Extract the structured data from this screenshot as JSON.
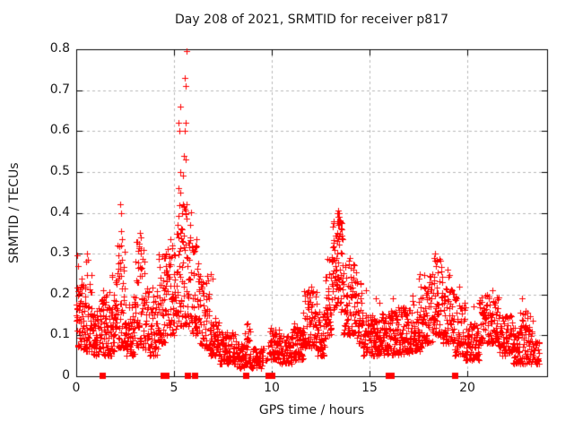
{
  "window": {
    "background": "#ffffff",
    "text_color": "#1a1a1a"
  },
  "chart_data": {
    "type": "scatter",
    "title": "Day 208 of 2021, SRMTID for receiver p817",
    "xlabel": "GPS time / hours",
    "ylabel": "SRMTID / TECUs",
    "xlim": [
      0,
      24.08
    ],
    "ylim": [
      0,
      0.8
    ],
    "xticks": [
      0,
      5,
      10,
      15,
      20
    ],
    "yticks": [
      0,
      0.1,
      0.2,
      0.3,
      0.4,
      0.5,
      0.6,
      0.7,
      0.8
    ],
    "grid": {
      "show": true,
      "style": "dashed",
      "color": "#b8b8b8"
    },
    "axis_color": "#000000",
    "marker": {
      "shape": "plus",
      "color": "#ff0000",
      "size": 7
    },
    "zero_marker": {
      "shape": "square",
      "color": "#ff0000",
      "size": 7
    },
    "legend": null,
    "seed": 42,
    "density_bands": [
      [
        0.0,
        0.3,
        0.07,
        0.24,
        40,
        1.2
      ],
      [
        0.3,
        0.8,
        0.06,
        0.25,
        60,
        1.5
      ],
      [
        0.8,
        1.3,
        0.05,
        0.17,
        55,
        1.4
      ],
      [
        1.3,
        1.8,
        0.05,
        0.22,
        60,
        1.6
      ],
      [
        1.8,
        2.1,
        0.06,
        0.25,
        40,
        1.5
      ],
      [
        2.1,
        2.5,
        0.07,
        0.33,
        50,
        1.7
      ],
      [
        2.5,
        3.0,
        0.05,
        0.2,
        55,
        1.5
      ],
      [
        3.0,
        3.5,
        0.07,
        0.33,
        60,
        1.7
      ],
      [
        3.5,
        4.2,
        0.05,
        0.22,
        70,
        1.6
      ],
      [
        4.2,
        4.6,
        0.08,
        0.3,
        50,
        1.5
      ],
      [
        4.6,
        5.1,
        0.1,
        0.32,
        60,
        1.3
      ],
      [
        5.1,
        5.9,
        0.12,
        0.42,
        90,
        1.4
      ],
      [
        5.9,
        6.3,
        0.1,
        0.33,
        50,
        1.5
      ],
      [
        6.3,
        6.8,
        0.07,
        0.25,
        50,
        1.7
      ],
      [
        6.8,
        7.3,
        0.05,
        0.15,
        55,
        1.4
      ],
      [
        7.3,
        8.2,
        0.03,
        0.11,
        95,
        1.3
      ],
      [
        8.2,
        8.6,
        0.02,
        0.08,
        40,
        1.3
      ],
      [
        8.6,
        8.9,
        0.03,
        0.13,
        30,
        1.4
      ],
      [
        8.9,
        9.55,
        0.02,
        0.07,
        45,
        1.3
      ],
      [
        9.55,
        9.9,
        0.03,
        0.08,
        8,
        1.3
      ],
      [
        9.9,
        10.4,
        0.04,
        0.12,
        55,
        1.4
      ],
      [
        10.4,
        11.0,
        0.03,
        0.1,
        60,
        1.3
      ],
      [
        11.0,
        11.6,
        0.04,
        0.13,
        65,
        1.4
      ],
      [
        11.6,
        12.3,
        0.07,
        0.21,
        80,
        1.5
      ],
      [
        12.3,
        12.75,
        0.05,
        0.16,
        50,
        1.4
      ],
      [
        12.75,
        13.1,
        0.1,
        0.3,
        45,
        1.5
      ],
      [
        13.1,
        13.65,
        0.15,
        0.4,
        75,
        1.15
      ],
      [
        13.65,
        14.0,
        0.1,
        0.3,
        40,
        1.5
      ],
      [
        14.0,
        14.35,
        0.1,
        0.28,
        40,
        1.4
      ],
      [
        14.35,
        14.6,
        0.08,
        0.24,
        30,
        1.4
      ],
      [
        14.6,
        15.0,
        0.05,
        0.16,
        40,
        1.4
      ],
      [
        15.0,
        15.6,
        0.05,
        0.15,
        65,
        1.4
      ],
      [
        15.6,
        16.4,
        0.05,
        0.16,
        85,
        1.4
      ],
      [
        16.4,
        17.1,
        0.05,
        0.17,
        75,
        1.5
      ],
      [
        17.1,
        17.7,
        0.06,
        0.2,
        65,
        1.5
      ],
      [
        17.7,
        18.2,
        0.08,
        0.25,
        55,
        1.5
      ],
      [
        18.2,
        18.7,
        0.1,
        0.3,
        55,
        1.5
      ],
      [
        18.7,
        19.3,
        0.08,
        0.25,
        65,
        1.6
      ],
      [
        19.3,
        19.9,
        0.05,
        0.2,
        60,
        1.6
      ],
      [
        19.9,
        20.6,
        0.04,
        0.13,
        70,
        1.4
      ],
      [
        20.6,
        21.6,
        0.08,
        0.2,
        100,
        1.4
      ],
      [
        21.6,
        22.3,
        0.05,
        0.15,
        70,
        1.4
      ],
      [
        22.3,
        22.7,
        0.03,
        0.12,
        45,
        1.3
      ],
      [
        22.7,
        23.35,
        0.03,
        0.16,
        65,
        1.4
      ],
      [
        23.35,
        23.7,
        0.03,
        0.09,
        25,
        1.3
      ]
    ],
    "outlier_points": [
      [
        5.64,
        0.796
      ],
      [
        5.55,
        0.73
      ],
      [
        5.58,
        0.71
      ],
      [
        5.3,
        0.66
      ],
      [
        5.25,
        0.62
      ],
      [
        5.6,
        0.62
      ],
      [
        5.27,
        0.6
      ],
      [
        5.55,
        0.6
      ],
      [
        5.5,
        0.54
      ],
      [
        5.6,
        0.53
      ],
      [
        5.3,
        0.5
      ],
      [
        5.45,
        0.49
      ],
      [
        5.25,
        0.46
      ],
      [
        5.3,
        0.45
      ],
      [
        5.45,
        0.42
      ],
      [
        5.5,
        0.415
      ],
      [
        5.55,
        0.41
      ],
      [
        5.6,
        0.4
      ],
      [
        5.4,
        0.4
      ],
      [
        5.2,
        0.37
      ],
      [
        5.35,
        0.36
      ],
      [
        5.3,
        0.35
      ],
      [
        5.5,
        0.345
      ],
      [
        2.25,
        0.42
      ],
      [
        2.28,
        0.4
      ],
      [
        2.3,
        0.355
      ],
      [
        2.32,
        0.335
      ],
      [
        2.28,
        0.32
      ],
      [
        3.25,
        0.35
      ],
      [
        3.3,
        0.34
      ],
      [
        3.2,
        0.325
      ],
      [
        0.05,
        0.295
      ],
      [
        0.1,
        0.27
      ],
      [
        0.55,
        0.3
      ],
      [
        0.6,
        0.285
      ],
      [
        0.5,
        0.28
      ],
      [
        4.8,
        0.335
      ],
      [
        4.9,
        0.32
      ],
      [
        6.15,
        0.335
      ],
      [
        6.1,
        0.32
      ],
      [
        6.9,
        0.25
      ],
      [
        6.95,
        0.24
      ],
      [
        8.75,
        0.13
      ],
      [
        13.35,
        0.4
      ],
      [
        13.4,
        0.405
      ],
      [
        13.45,
        0.4
      ],
      [
        13.38,
        0.39
      ],
      [
        13.5,
        0.38
      ],
      [
        13.42,
        0.37
      ],
      [
        12.0,
        0.22
      ],
      [
        11.9,
        0.21
      ],
      [
        14.8,
        0.21
      ],
      [
        15.3,
        0.19
      ],
      [
        15.5,
        0.18
      ],
      [
        16.2,
        0.19
      ],
      [
        17.55,
        0.25
      ],
      [
        17.5,
        0.24
      ],
      [
        17.6,
        0.22
      ],
      [
        18.35,
        0.3
      ],
      [
        18.3,
        0.29
      ],
      [
        18.45,
        0.28
      ],
      [
        18.4,
        0.27
      ],
      [
        19.0,
        0.26
      ],
      [
        19.6,
        0.22
      ],
      [
        20.3,
        0.17
      ],
      [
        21.3,
        0.21
      ],
      [
        21.0,
        0.2
      ],
      [
        22.8,
        0.19
      ],
      [
        23.0,
        0.16
      ]
    ],
    "zero_square_hours": [
      1.35,
      4.45,
      4.6,
      5.7,
      6.05,
      8.65,
      9.8,
      10.0,
      15.95,
      16.1,
      19.35
    ]
  }
}
